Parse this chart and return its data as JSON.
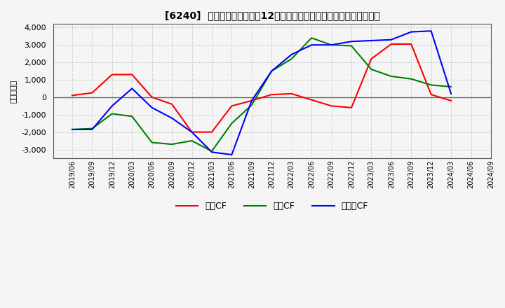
{
  "title": "[6240]  キャッシュフローの12か月移動合計の対前年同期増減額の推移",
  "ylabel": "（百万円）",
  "ylim": [
    -3500,
    4200
  ],
  "yticks": [
    -3000,
    -2000,
    -1000,
    0,
    1000,
    2000,
    3000,
    4000
  ],
  "x_labels": [
    "2019/06",
    "2019/09",
    "2019/12",
    "2020/03",
    "2020/06",
    "2020/09",
    "2020/12",
    "2021/03",
    "2021/06",
    "2021/09",
    "2021/12",
    "2022/03",
    "2022/06",
    "2022/09",
    "2022/12",
    "2023/03",
    "2023/06",
    "2023/09",
    "2023/12",
    "2024/03",
    "2024/06",
    "2024/09"
  ],
  "operating_cf": [
    100,
    250,
    1300,
    1300,
    0,
    -400,
    -2000,
    -2000,
    -500,
    -200,
    150,
    200,
    -150,
    -500,
    -600,
    2200,
    3050,
    3050,
    150,
    -200,
    null,
    null
  ],
  "investing_cf": [
    -1850,
    -1800,
    -950,
    -1100,
    -2600,
    -2700,
    -2500,
    -3100,
    -1500,
    -450,
    1500,
    2200,
    3400,
    3000,
    2950,
    1600,
    1200,
    1050,
    700,
    600,
    null,
    null
  ],
  "free_cf": [
    -1850,
    -1850,
    -500,
    500,
    -600,
    -1200,
    -2000,
    -3150,
    -3300,
    -200,
    1500,
    2450,
    3000,
    3000,
    3200,
    3250,
    3300,
    3750,
    3800,
    200,
    null,
    null
  ],
  "line_colors": {
    "operating": "#ff0000",
    "investing": "#008000",
    "free": "#0000ff"
  },
  "legend_labels": [
    "営業CF",
    "投資CF",
    "フリーCF"
  ],
  "background_color": "#f5f5f5",
  "plot_bg_color": "#f5f5f5",
  "grid_color": "#aaaaaa"
}
